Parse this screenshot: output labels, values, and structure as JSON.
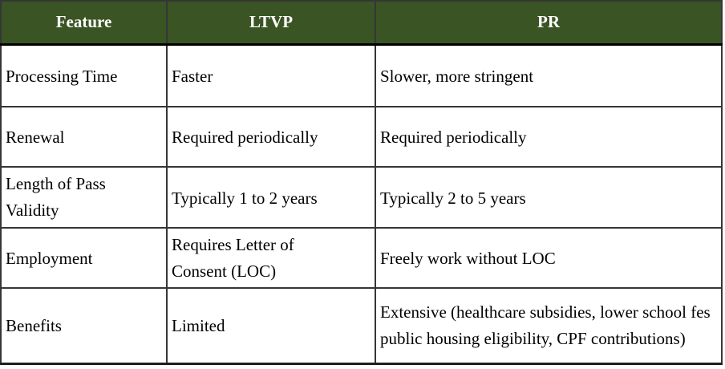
{
  "table": {
    "headers": [
      "Feature",
      "LTVP",
      "PR"
    ],
    "rows": [
      {
        "feature": "Processing Time",
        "ltvp": "Faster",
        "pr": "Slower, more stringent"
      },
      {
        "feature": "Renewal",
        "ltvp": "Required periodically",
        "pr": "Required periodically"
      },
      {
        "feature": "Length of Pass Validity",
        "ltvp": "Typically 1 to 2 years",
        "pr": "Typically 2 to 5 years"
      },
      {
        "feature": "Employment",
        "ltvp": "Requires Letter of Consent (LOC)",
        "pr": "Freely work without LOC"
      },
      {
        "feature": "Benefits",
        "ltvp": "Limited",
        "pr": "Extensive (healthcare subsidies, lower school fes public housing eligibility, CPF contributions)"
      }
    ]
  },
  "colors": {
    "header_bg": "#3A5424",
    "header_text": "#FFFFFF",
    "body_text": "#000000",
    "border": "#1E1E1E",
    "grid": "#363636",
    "background": "#FFFFFF"
  }
}
